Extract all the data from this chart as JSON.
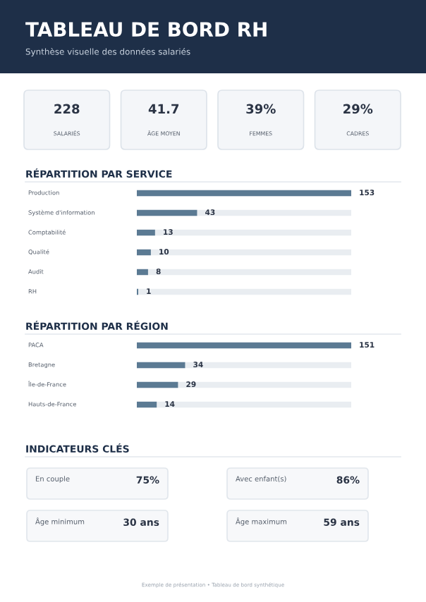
{
  "chart_data": [
    {
      "type": "other",
      "title": "TABLEAU DE BORD RH",
      "subtitle": "Synthèse visuelle des données salariés",
      "categories": [
        "SALARIÉS",
        "ÂGE MOYEN",
        "FEMMES",
        "CADRES"
      ],
      "values": [
        228,
        41.7,
        39,
        29
      ],
      "value_labels": [
        "228",
        "41.7",
        "39%",
        "29%"
      ]
    },
    {
      "type": "bar",
      "title": "RÉPARTITION PAR SERVICE",
      "orientation": "horizontal",
      "categories": [
        "Production",
        "Système d'information",
        "Comptabilité",
        "Qualité",
        "Audit",
        "RH"
      ],
      "values": [
        153,
        43,
        13,
        10,
        8,
        1
      ],
      "color": "#5b7a93",
      "data_labels": true
    },
    {
      "type": "bar",
      "title": "RÉPARTITION PAR RÉGION",
      "orientation": "horizontal",
      "categories": [
        "PACA",
        "Bretagne",
        "Île-de-France",
        "Hauts-de-France"
      ],
      "values": [
        151,
        34,
        29,
        14
      ],
      "color": "#5b7a93",
      "data_labels": true
    },
    {
      "type": "other",
      "title": "INDICATEURS CLÉS",
      "categories": [
        "En couple",
        "Avec enfant(s)",
        "Âge minimum",
        "Âge maximum"
      ],
      "values": [
        75,
        86,
        30,
        59
      ],
      "value_labels": [
        "75%",
        "86%",
        "30 ans",
        "59 ans"
      ],
      "annotations": [
        "Exemple de présentation • Tableau de bord synthétique"
      ]
    }
  ]
}
